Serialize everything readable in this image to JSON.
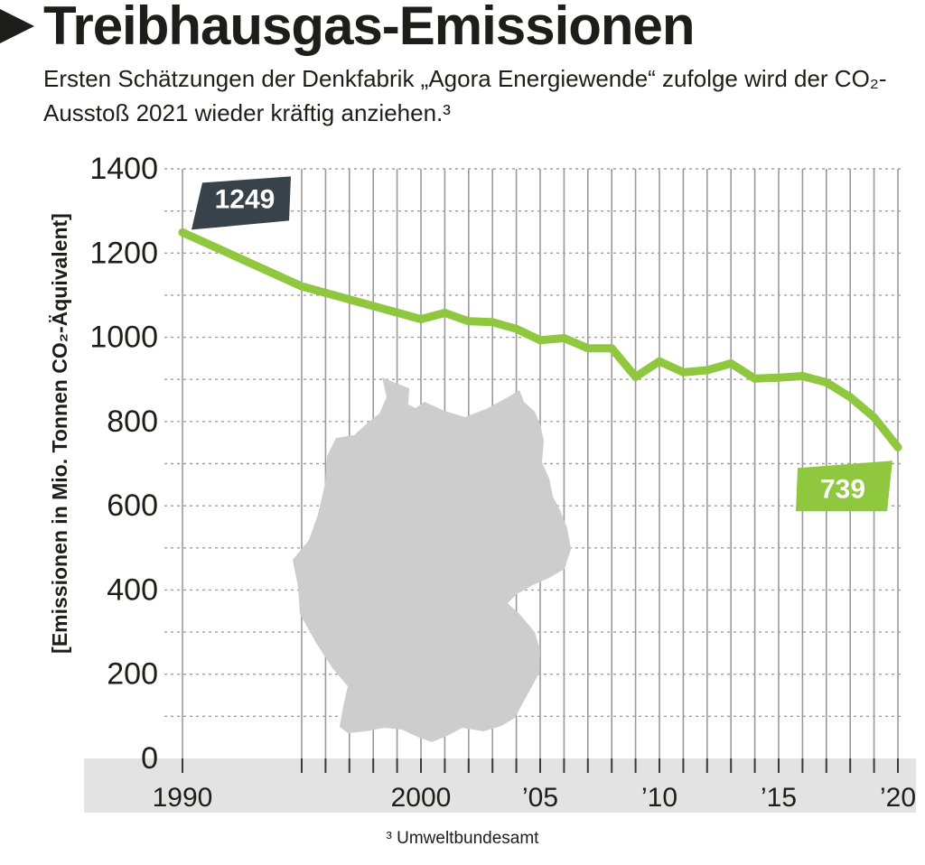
{
  "header": {
    "title": "Treibhausgas-Emissionen",
    "subtitle": "Ersten Schätzungen der Denkfabrik „Agora Energiewende“ zufolge wird der CO₂-Ausstoß 2021 wieder kräftig anziehen.³"
  },
  "source": "³ Umweltbundesamt",
  "colors": {
    "line": "#8fc73e",
    "start_label_bg": "#37424a",
    "end_label_bg": "#8fc73e",
    "map": "#cdcdcd",
    "axis_band": "#e3e3e3"
  },
  "chart_data": {
    "type": "line",
    "title": "Treibhausgas-Emissionen",
    "ylabel": "[Emissionen in Mio. Tonnen CO₂-Äquivalent]",
    "xlabel": "",
    "ylim": [
      0,
      1400
    ],
    "xlim": [
      1990,
      2020
    ],
    "yticks": [
      0,
      200,
      400,
      600,
      800,
      1000,
      1200,
      1400
    ],
    "xticks": [
      1990,
      2000,
      2005,
      2010,
      2015,
      2020
    ],
    "xtick_labels": [
      "1990",
      "2000",
      "’05",
      "’10",
      "’15",
      "’20"
    ],
    "grid": true,
    "x": [
      1990,
      1995,
      2000,
      2001,
      2002,
      2003,
      2004,
      2005,
      2006,
      2007,
      2008,
      2009,
      2010,
      2011,
      2012,
      2013,
      2014,
      2015,
      2016,
      2017,
      2018,
      2019,
      2020
    ],
    "values": [
      1249,
      1121,
      1043,
      1058,
      1038,
      1036,
      1020,
      993,
      998,
      974,
      974,
      906,
      943,
      917,
      922,
      938,
      902,
      904,
      908,
      893,
      858,
      810,
      739
    ],
    "annotations": [
      {
        "x": 1990,
        "value": 1249,
        "label": "1249"
      },
      {
        "x": 2020,
        "value": 739,
        "label": "739"
      }
    ]
  }
}
